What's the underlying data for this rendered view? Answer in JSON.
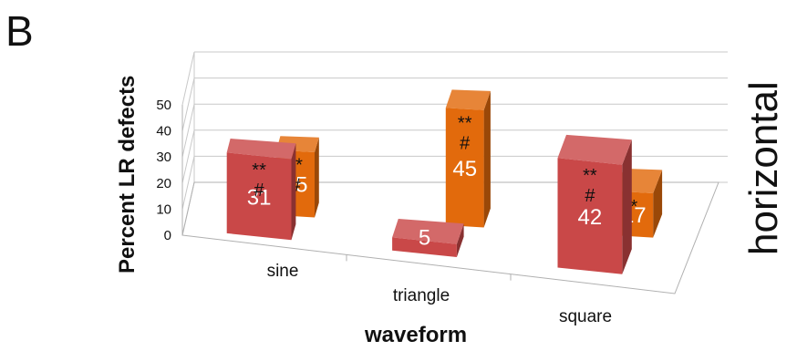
{
  "panel_label": "B",
  "side_label": "horizontal",
  "chart_data": {
    "type": "bar",
    "title": "",
    "xlabel": "waveform",
    "ylabel": "Percent LR defects",
    "categories": [
      "sine",
      "triangle",
      "square"
    ],
    "yticks": [
      0,
      10,
      20,
      30,
      40,
      50
    ],
    "ylim": [
      0,
      50
    ],
    "series": [
      {
        "values": [
          31,
          5,
          42
        ],
        "color": "#c94848",
        "significance": [
          "**\n#",
          "",
          "**\n#"
        ]
      },
      {
        "values": [
          25,
          45,
          17
        ],
        "color": "#e26a0c",
        "significance": [
          "**\n#",
          "**\n#",
          "*"
        ]
      }
    ],
    "grid": true,
    "legend": "none"
  }
}
